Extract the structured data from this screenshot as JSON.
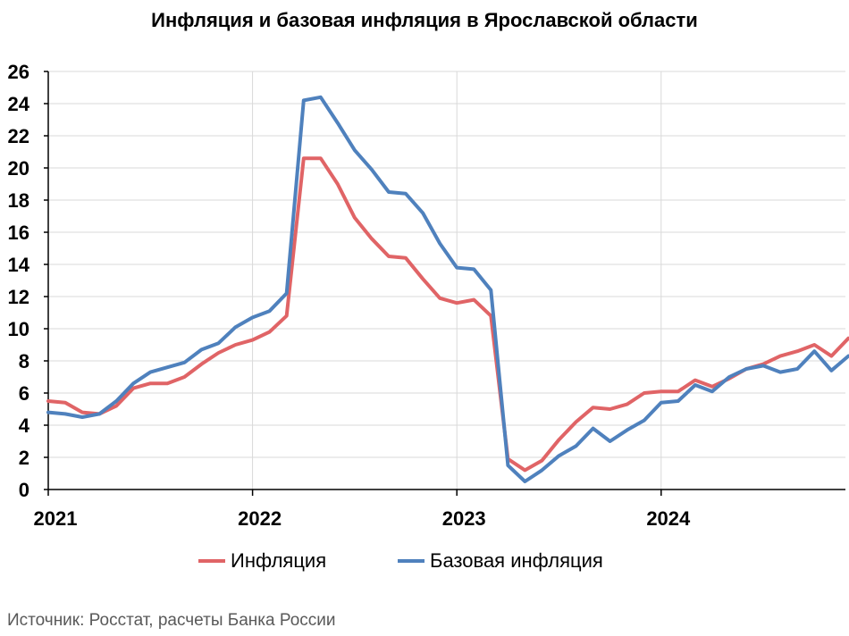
{
  "title": "Инфляция и базовая инфляция в Ярославской области",
  "source": "Источник: Росстат, расчеты Банка России",
  "chart_data": {
    "type": "line",
    "title": "Инфляция и базовая инфляция в Ярославской области",
    "x_start": "2021-01",
    "x_tick_labels": [
      "2021",
      "2022",
      "2023",
      "2024"
    ],
    "ylim": [
      0,
      26
    ],
    "y_ticks": [
      0,
      2,
      4,
      6,
      8,
      10,
      12,
      14,
      16,
      18,
      20,
      22,
      24,
      26
    ],
    "grid": true,
    "legend_position": "bottom",
    "series": [
      {
        "name": "Инфляция",
        "color": "#e06466",
        "values": [
          5.5,
          5.4,
          4.8,
          4.7,
          5.2,
          6.3,
          6.6,
          6.6,
          7.0,
          7.8,
          8.5,
          9.0,
          9.3,
          9.8,
          10.8,
          20.6,
          20.6,
          19.0,
          16.9,
          15.6,
          14.5,
          14.4,
          13.1,
          11.9,
          11.6,
          11.8,
          10.8,
          1.9,
          1.2,
          1.8,
          3.1,
          4.2,
          5.1,
          5.0,
          5.3,
          6.0,
          6.1,
          6.1,
          6.8,
          6.4,
          6.9,
          7.5,
          7.8,
          8.3,
          8.6,
          9.0,
          8.3,
          9.4
        ]
      },
      {
        "name": "Базовая инфляция",
        "color": "#4f81bd",
        "values": [
          4.8,
          4.7,
          4.5,
          4.7,
          5.5,
          6.6,
          7.3,
          7.6,
          7.9,
          8.7,
          9.1,
          10.1,
          10.7,
          11.1,
          12.2,
          24.2,
          24.4,
          22.8,
          21.1,
          19.9,
          18.5,
          18.4,
          17.2,
          15.3,
          13.8,
          13.7,
          12.4,
          1.5,
          0.5,
          1.2,
          2.1,
          2.7,
          3.8,
          3.0,
          3.7,
          4.3,
          5.4,
          5.5,
          6.5,
          6.1,
          7.0,
          7.5,
          7.7,
          7.3,
          7.5,
          8.6,
          7.4,
          8.3
        ]
      }
    ]
  }
}
